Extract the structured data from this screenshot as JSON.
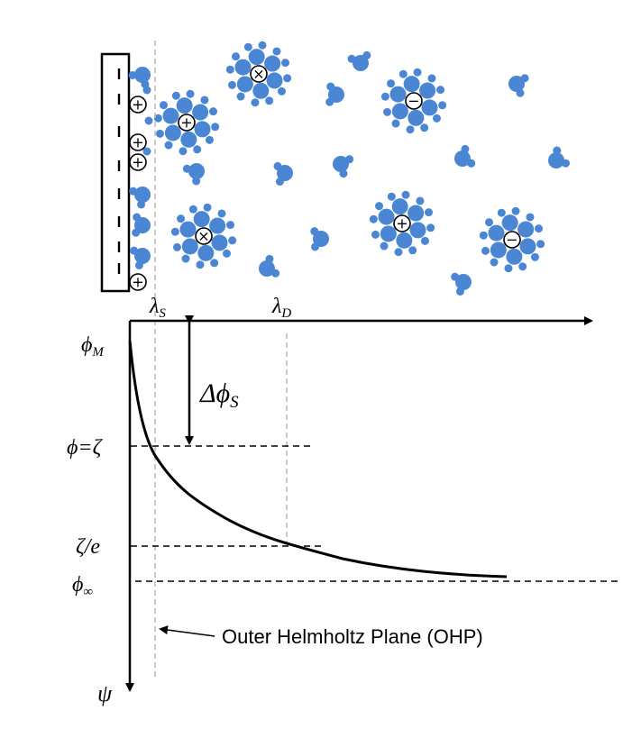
{
  "symbols": {
    "lambda_s": "λ",
    "lambda_s_sub": "S",
    "lambda_d": "λ",
    "lambda_d_sub": "D",
    "phi_m": "ϕ",
    "phi_m_sub": "M",
    "delta_phi_s": "Δϕ",
    "delta_phi_s_sub": "S",
    "phi_zeta": "ϕ=ζ",
    "zeta_over_e": "ζ/e",
    "phi_inf": "ϕ",
    "phi_inf_sub": "∞",
    "psi": "ψ"
  },
  "annotation": {
    "ohp": "Outer Helmholtz Plane (OHP)"
  },
  "ions": {
    "plus": "+",
    "minus": "−",
    "cross": "×"
  },
  "colors": {
    "molecule": "#4a86d4",
    "line": "#000000",
    "guide": "#b8b8b8"
  }
}
